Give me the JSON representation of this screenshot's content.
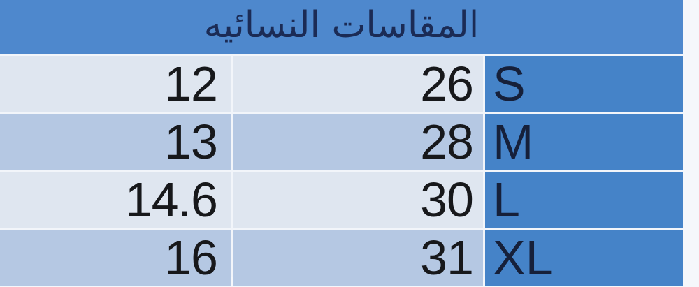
{
  "chart_data": {
    "type": "table",
    "title": "المقاسات النسائيه",
    "has_column_headers": false,
    "rows": [
      {
        "value1": "12",
        "value2": "26",
        "size": "S"
      },
      {
        "value1": "13",
        "value2": "28",
        "size": "M"
      },
      {
        "value1": "14.6",
        "value2": "30",
        "size": "L"
      },
      {
        "value1": "16",
        "value2": "31",
        "size": "XL"
      }
    ]
  },
  "colors": {
    "page_bg": "#f5f7fb",
    "gap": "#f2f5fa",
    "header_bg": "#4e88cd",
    "size_cell_bg": "#4583c8",
    "row_light_bg": "#dfe6f0",
    "row_medium_bg": "#b5c8e3",
    "title_text": "#1b2b55",
    "number_text": "#17181b",
    "size_text": "#16203a"
  }
}
